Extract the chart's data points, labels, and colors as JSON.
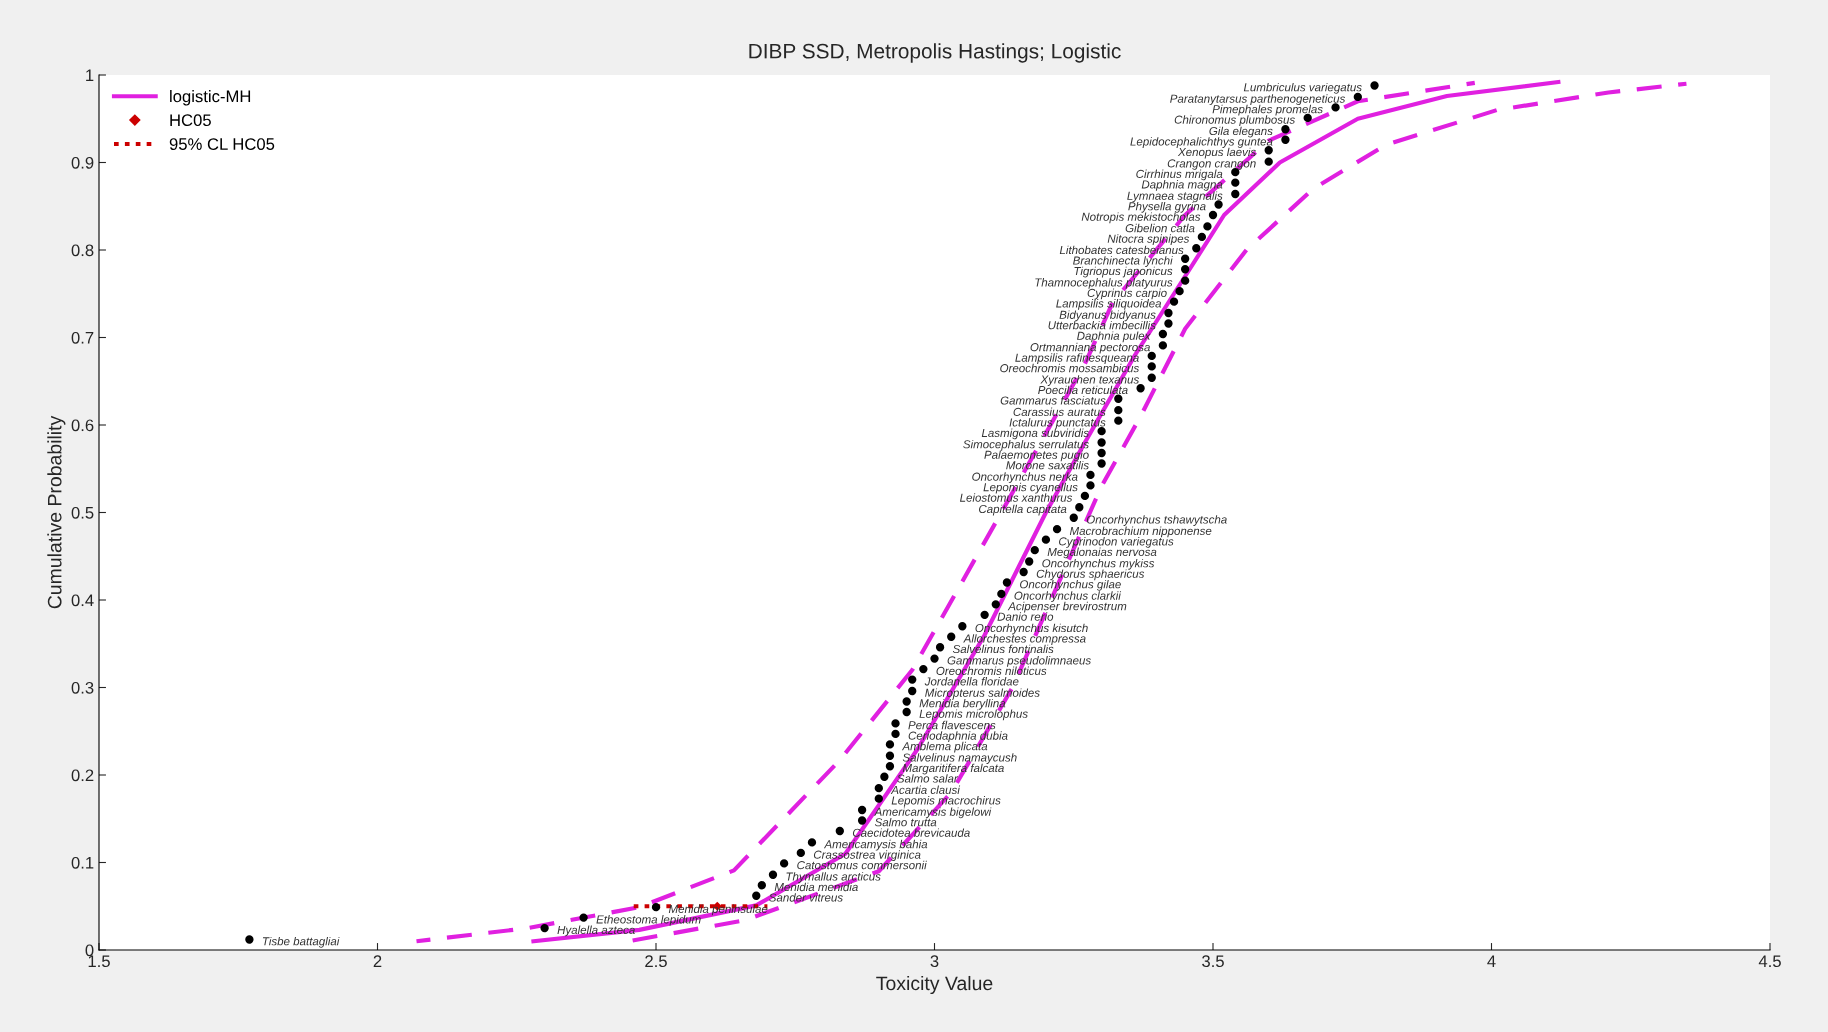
{
  "chart_data": {
    "type": "scatter",
    "title": "DIBP SSD, Metropolis Hastings; Logistic",
    "xlabel": "Toxicity Value",
    "ylabel": "Cumulative Probability",
    "xlim": [
      1.5,
      4.5
    ],
    "xticks": [
      1.5,
      2,
      2.5,
      3,
      3.5,
      4,
      4.5
    ],
    "ylim": [
      0,
      1
    ],
    "yticks": [
      0,
      0.1,
      0.2,
      0.3,
      0.4,
      0.5,
      0.6,
      0.7,
      0.8,
      0.9,
      1
    ],
    "grid": false,
    "legend": "top left",
    "series": [
      {
        "type": "scatter",
        "color": "#000000",
        "marker": "circle",
        "x": [
          1.77,
          2.3,
          2.37,
          2.5,
          2.68,
          2.69,
          2.71,
          2.73,
          2.76,
          2.78,
          2.83,
          2.87,
          2.87,
          2.9,
          2.9,
          2.91,
          2.92,
          2.92,
          2.92,
          2.93,
          2.93,
          2.95,
          2.95,
          2.96,
          2.96,
          2.98,
          3.0,
          3.01,
          3.03,
          3.05,
          3.09,
          3.11,
          3.12,
          3.13,
          3.16,
          3.17,
          3.18,
          3.2,
          3.22,
          3.25,
          3.26,
          3.27,
          3.28,
          3.28,
          3.3,
          3.3,
          3.3,
          3.3,
          3.33,
          3.33,
          3.33,
          3.37,
          3.39,
          3.39,
          3.39,
          3.41,
          3.41,
          3.42,
          3.42,
          3.43,
          3.44,
          3.45,
          3.45,
          3.45,
          3.47,
          3.48,
          3.49,
          3.5,
          3.51,
          3.54,
          3.54,
          3.54,
          3.6,
          3.6,
          3.63,
          3.63,
          3.67,
          3.72,
          3.76,
          3.79
        ],
        "values": [
          0.012,
          0.025,
          0.037,
          0.049,
          0.062,
          0.074,
          0.086,
          0.099,
          0.111,
          0.123,
          0.136,
          0.148,
          0.16,
          0.173,
          0.185,
          0.198,
          0.21,
          0.222,
          0.235,
          0.247,
          0.259,
          0.272,
          0.284,
          0.296,
          0.309,
          0.321,
          0.333,
          0.346,
          0.358,
          0.37,
          0.383,
          0.395,
          0.407,
          0.42,
          0.432,
          0.444,
          0.457,
          0.469,
          0.481,
          0.494,
          0.506,
          0.519,
          0.531,
          0.543,
          0.556,
          0.568,
          0.58,
          0.593,
          0.605,
          0.617,
          0.63,
          0.642,
          0.654,
          0.667,
          0.679,
          0.691,
          0.704,
          0.716,
          0.728,
          0.741,
          0.753,
          0.765,
          0.778,
          0.79,
          0.802,
          0.815,
          0.827,
          0.84,
          0.852,
          0.864,
          0.877,
          0.889,
          0.901,
          0.914,
          0.926,
          0.938,
          0.951,
          0.963,
          0.975,
          0.988
        ]
      },
      {
        "type": "line",
        "name": "logistic-MH",
        "color": "#e020e0",
        "line_style": "solid",
        "marker": "none",
        "x": [
          2.28,
          2.47,
          2.68,
          2.84,
          2.97,
          3.09,
          3.2,
          3.27,
          3.36,
          3.44,
          3.52,
          3.62,
          3.76,
          3.92,
          4.12
        ],
        "values": [
          0.01,
          0.023,
          0.051,
          0.11,
          0.23,
          0.36,
          0.5,
          0.58,
          0.68,
          0.76,
          0.84,
          0.9,
          0.95,
          0.976,
          0.992
        ]
      },
      {
        "type": "line",
        "color": "#e020e0",
        "line_style": "dashed",
        "marker": "none",
        "x": [
          2.07,
          2.27,
          2.47,
          2.64,
          2.83,
          2.96,
          3.04,
          3.12,
          3.27,
          3.32,
          3.45,
          3.6,
          3.76,
          3.97
        ],
        "values": [
          0.01,
          0.025,
          0.049,
          0.091,
          0.217,
          0.32,
          0.41,
          0.5,
          0.67,
          0.74,
          0.84,
          0.925,
          0.97,
          0.991
        ]
      },
      {
        "type": "line",
        "color": "#e020e0",
        "line_style": "dashed",
        "marker": "none",
        "x": [
          2.45,
          2.66,
          2.9,
          3.03,
          3.14,
          3.23,
          3.3,
          3.37,
          3.45,
          3.56,
          3.68,
          3.81,
          4.01,
          4.21,
          4.35
        ],
        "values": [
          0.01,
          0.034,
          0.09,
          0.18,
          0.3,
          0.43,
          0.53,
          0.61,
          0.71,
          0.8,
          0.87,
          0.92,
          0.96,
          0.98,
          0.99
        ]
      },
      {
        "type": "scatter",
        "name": "HC05",
        "color": "#cc0000",
        "marker": "diamond",
        "x": [
          2.61
        ],
        "values": [
          0.05
        ]
      },
      {
        "type": "line",
        "name": "95% CL HC05",
        "color": "#cc0000",
        "line_style": "dotted",
        "marker": "none",
        "x": [
          2.46,
          2.7
        ],
        "values": [
          0.05,
          0.05
        ]
      }
    ],
    "annotations": [
      {
        "text": "Tisbe battagliai",
        "x": 1.77,
        "y": 0.012
      },
      {
        "text": "Hyalella azteca",
        "x": 2.3,
        "y": 0.025
      },
      {
        "text": "Etheostoma lepidum",
        "x": 2.37,
        "y": 0.037
      },
      {
        "text": "Menidia peninsulae",
        "x": 2.5,
        "y": 0.049
      },
      {
        "text": "Sander vitreus",
        "x": 2.68,
        "y": 0.062
      },
      {
        "text": "Menidia menidia",
        "x": 2.69,
        "y": 0.074
      },
      {
        "text": "Thymallus arcticus",
        "x": 2.71,
        "y": 0.086
      },
      {
        "text": "Catostomus commersonii",
        "x": 2.73,
        "y": 0.099
      },
      {
        "text": "Crassostrea virginica",
        "x": 2.76,
        "y": 0.111
      },
      {
        "text": "Americamysis bahia",
        "x": 2.78,
        "y": 0.123
      },
      {
        "text": "Caecidotea brevicauda",
        "x": 2.83,
        "y": 0.136
      },
      {
        "text": "Salmo trutta",
        "x": 2.87,
        "y": 0.148
      },
      {
        "text": "Americamysis bigelowi",
        "x": 2.87,
        "y": 0.16
      },
      {
        "text": "Lepomis macrochirus",
        "x": 2.9,
        "y": 0.173
      },
      {
        "text": "Acartia clausi",
        "x": 2.9,
        "y": 0.185
      },
      {
        "text": "Salmo salar",
        "x": 2.91,
        "y": 0.198
      },
      {
        "text": "Margaritifera falcata",
        "x": 2.92,
        "y": 0.21
      },
      {
        "text": "Salvelinus namaycush",
        "x": 2.92,
        "y": 0.222
      },
      {
        "text": "Amblema plicata",
        "x": 2.92,
        "y": 0.235
      },
      {
        "text": "Ceriodaphnia dubia",
        "x": 2.93,
        "y": 0.247
      },
      {
        "text": "Perca flavescens",
        "x": 2.93,
        "y": 0.259
      },
      {
        "text": "Lepomis microlophus",
        "x": 2.95,
        "y": 0.272
      },
      {
        "text": "Menidia beryllina",
        "x": 2.95,
        "y": 0.284
      },
      {
        "text": "Micropterus salmoides",
        "x": 2.96,
        "y": 0.296
      },
      {
        "text": "Jordanella floridae",
        "x": 2.96,
        "y": 0.309
      },
      {
        "text": "Oreochromis niloticus",
        "x": 2.98,
        "y": 0.321
      },
      {
        "text": "Gammarus pseudolimnaeus",
        "x": 3.0,
        "y": 0.333
      },
      {
        "text": "Salvelinus fontinalis",
        "x": 3.01,
        "y": 0.346
      },
      {
        "text": "Allorchestes compressa",
        "x": 3.03,
        "y": 0.358
      },
      {
        "text": "Oncorhynchus kisutch",
        "x": 3.05,
        "y": 0.37
      },
      {
        "text": "Danio rerio",
        "x": 3.09,
        "y": 0.383
      },
      {
        "text": "Acipenser brevirostrum",
        "x": 3.11,
        "y": 0.395
      },
      {
        "text": "Oncorhynchus clarkii",
        "x": 3.12,
        "y": 0.407
      },
      {
        "text": "Oncorhynchus gilae",
        "x": 3.13,
        "y": 0.42
      },
      {
        "text": "Chydorus sphaericus",
        "x": 3.16,
        "y": 0.432
      },
      {
        "text": "Oncorhynchus mykiss",
        "x": 3.17,
        "y": 0.444
      },
      {
        "text": "Megalonaias nervosa",
        "x": 3.18,
        "y": 0.457
      },
      {
        "text": "Cyprinodon variegatus",
        "x": 3.2,
        "y": 0.469
      },
      {
        "text": "Macrobrachium nipponense",
        "x": 3.22,
        "y": 0.481
      },
      {
        "text": "Oncorhynchus tshawytscha",
        "x": 3.25,
        "y": 0.494
      },
      {
        "text": "Capitella capitata",
        "x": 3.26,
        "y": 0.506
      },
      {
        "text": "Leiostomus xanthurus",
        "x": 3.27,
        "y": 0.519
      },
      {
        "text": "Lepomis cyanellus",
        "x": 3.28,
        "y": 0.531
      },
      {
        "text": "Oncorhynchus nerka",
        "x": 3.28,
        "y": 0.543
      },
      {
        "text": "Morone saxatilis",
        "x": 3.3,
        "y": 0.556
      },
      {
        "text": "Palaemonetes pugio",
        "x": 3.3,
        "y": 0.568
      },
      {
        "text": "Simocephalus serrulatus",
        "x": 3.3,
        "y": 0.58
      },
      {
        "text": "Lasmigona subviridis",
        "x": 3.3,
        "y": 0.593
      },
      {
        "text": "Ictalurus punctatus",
        "x": 3.33,
        "y": 0.605
      },
      {
        "text": "Carassius auratus",
        "x": 3.33,
        "y": 0.617
      },
      {
        "text": "Gammarus fasciatus",
        "x": 3.33,
        "y": 0.63
      },
      {
        "text": "Poecilia reticulata",
        "x": 3.37,
        "y": 0.642
      },
      {
        "text": "Xyrauchen texanus",
        "x": 3.39,
        "y": 0.654
      },
      {
        "text": "Oreochromis mossambicus",
        "x": 3.39,
        "y": 0.667
      },
      {
        "text": "Lampsilis rafinesqueana",
        "x": 3.39,
        "y": 0.679
      },
      {
        "text": "Ortmanniana pectorosa",
        "x": 3.41,
        "y": 0.691
      },
      {
        "text": "Daphnia pulex",
        "x": 3.41,
        "y": 0.704
      },
      {
        "text": "Utterbackia imbecillis",
        "x": 3.42,
        "y": 0.716
      },
      {
        "text": "Bidyanus bidyanus",
        "x": 3.42,
        "y": 0.728
      },
      {
        "text": "Lampsilis siliquoidea",
        "x": 3.43,
        "y": 0.741
      },
      {
        "text": "Cyprinus carpio",
        "x": 3.44,
        "y": 0.753
      },
      {
        "text": "Thamnocephalus platyurus",
        "x": 3.45,
        "y": 0.765
      },
      {
        "text": "Tigriopus japonicus",
        "x": 3.45,
        "y": 0.778
      },
      {
        "text": "Branchinecta lynchi",
        "x": 3.45,
        "y": 0.79
      },
      {
        "text": "Lithobates catesbeianus",
        "x": 3.47,
        "y": 0.802
      },
      {
        "text": "Nitocra spinipes",
        "x": 3.48,
        "y": 0.815
      },
      {
        "text": "Gibelion catla",
        "x": 3.49,
        "y": 0.827
      },
      {
        "text": "Notropis mekistocholas",
        "x": 3.5,
        "y": 0.84
      },
      {
        "text": "Physella gyrina",
        "x": 3.51,
        "y": 0.852
      },
      {
        "text": "Lymnaea stagnalis",
        "x": 3.54,
        "y": 0.864
      },
      {
        "text": "Daphnia magna",
        "x": 3.54,
        "y": 0.877
      },
      {
        "text": "Cirrhinus mrigala",
        "x": 3.54,
        "y": 0.889
      },
      {
        "text": "Crangon crangon",
        "x": 3.6,
        "y": 0.901
      },
      {
        "text": "Xenopus laevis",
        "x": 3.6,
        "y": 0.914
      },
      {
        "text": "Lepidocephalichthys guntea",
        "x": 3.63,
        "y": 0.926
      },
      {
        "text": "Gila elegans",
        "x": 3.63,
        "y": 0.938
      },
      {
        "text": "Chironomus plumbosus",
        "x": 3.67,
        "y": 0.951
      },
      {
        "text": "Pimephales promelas",
        "x": 3.72,
        "y": 0.963
      },
      {
        "text": "Paratanytarsus parthenogeneticus",
        "x": 3.76,
        "y": 0.975
      },
      {
        "text": "Lumbriculus variegatus",
        "x": 3.79,
        "y": 0.988
      }
    ]
  }
}
